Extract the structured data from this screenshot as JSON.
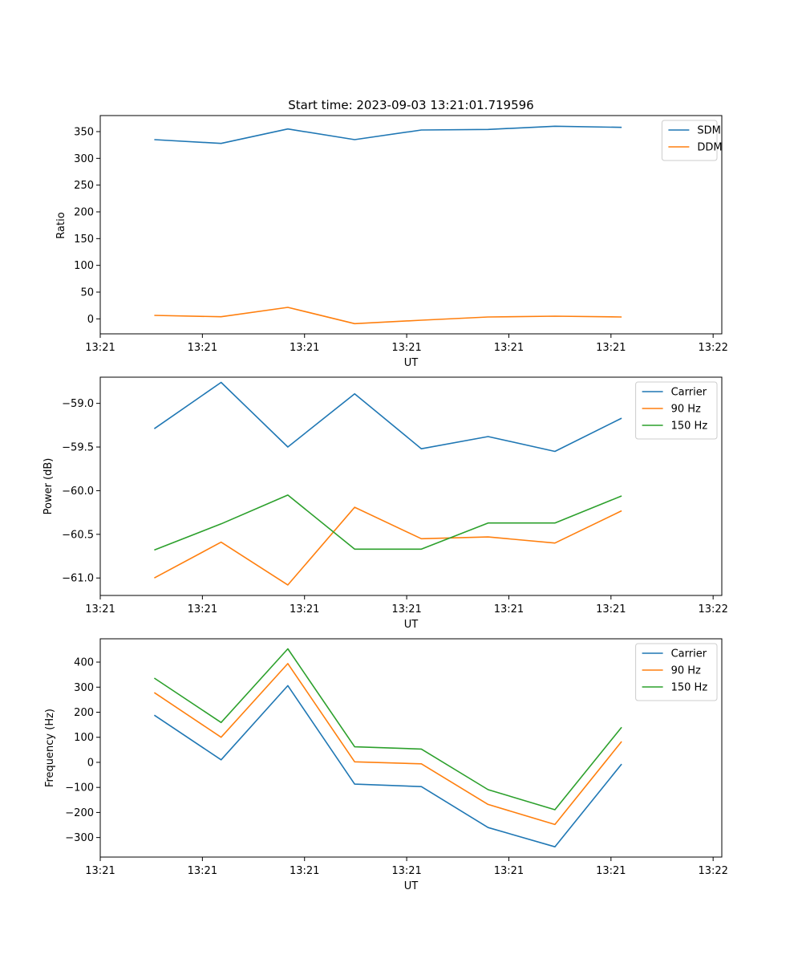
{
  "chart_data": [
    {
      "type": "line",
      "title": "Start time: 2023-09-03 13:21:01.719596",
      "xlabel": "UT",
      "ylabel": "Ratio",
      "x": [
        1,
        2,
        3,
        4,
        5,
        6,
        7,
        8
      ],
      "xlim": [
        0.19,
        9.5
      ],
      "x_ticks": [
        0.19,
        1.72,
        3.25,
        4.78,
        6.31,
        7.84,
        9.37
      ],
      "x_tick_labels": [
        "13:21",
        "13:21",
        "13:21",
        "13:21",
        "13:21",
        "13:21",
        "13:22"
      ],
      "ylim": [
        -28,
        380
      ],
      "y_ticks": [
        0,
        50,
        100,
        150,
        200,
        250,
        300,
        350
      ],
      "y_tick_labels": [
        "0",
        "50",
        "100",
        "150",
        "200",
        "250",
        "300",
        "350"
      ],
      "legend": "top-right",
      "series": [
        {
          "name": "SDM",
          "color": "#1f77b4",
          "values": [
            335,
            328,
            355,
            335,
            353,
            354,
            360,
            358
          ]
        },
        {
          "name": "DDM",
          "color": "#ff7f0e",
          "values": [
            6.5,
            4,
            21.5,
            -9,
            -2.5,
            3.5,
            5,
            3.5
          ]
        }
      ]
    },
    {
      "type": "line",
      "title": "",
      "xlabel": "UT",
      "ylabel": "Power (dB)",
      "x": [
        1,
        2,
        3,
        4,
        5,
        6,
        7,
        8
      ],
      "xlim": [
        0.19,
        9.5
      ],
      "x_ticks": [
        0.19,
        1.72,
        3.25,
        4.78,
        6.31,
        7.84,
        9.37
      ],
      "x_tick_labels": [
        "13:21",
        "13:21",
        "13:21",
        "13:21",
        "13:21",
        "13:21",
        "13:22"
      ],
      "ylim": [
        -61.2,
        -58.7
      ],
      "y_ticks": [
        -61.0,
        -60.5,
        -60.0,
        -59.5,
        -59.0
      ],
      "y_tick_labels": [
        "−61.0",
        "−60.5",
        "−60.0",
        "−59.5",
        "−59.0"
      ],
      "legend": "top-right",
      "series": [
        {
          "name": "Carrier",
          "color": "#1f77b4",
          "values": [
            -59.29,
            -58.76,
            -59.5,
            -58.89,
            -59.52,
            -59.38,
            -59.55,
            -59.17
          ]
        },
        {
          "name": "90 Hz",
          "color": "#ff7f0e",
          "values": [
            -61.0,
            -60.59,
            -61.08,
            -60.19,
            -60.55,
            -60.53,
            -60.6,
            -60.23
          ]
        },
        {
          "name": "150 Hz",
          "color": "#2ca02c",
          "values": [
            -60.68,
            -60.38,
            -60.05,
            -60.67,
            -60.67,
            -60.37,
            -60.37,
            -60.06
          ]
        }
      ]
    },
    {
      "type": "line",
      "title": "",
      "xlabel": "UT",
      "ylabel": "Frequency (Hz)",
      "x": [
        1,
        2,
        3,
        4,
        5,
        6,
        7,
        8
      ],
      "xlim": [
        0.19,
        9.5
      ],
      "x_ticks": [
        0.19,
        1.72,
        3.25,
        4.78,
        6.31,
        7.84,
        9.37
      ],
      "x_tick_labels": [
        "13:21",
        "13:21",
        "13:21",
        "13:21",
        "13:21",
        "13:21",
        "13:22"
      ],
      "ylim": [
        -378,
        493
      ],
      "y_ticks": [
        -300,
        -200,
        -100,
        0,
        100,
        200,
        300,
        400
      ],
      "y_tick_labels": [
        "−300",
        "−200",
        "−100",
        "0",
        "100",
        "200",
        "300",
        "400"
      ],
      "legend": "top-right",
      "series": [
        {
          "name": "Carrier",
          "color": "#1f77b4",
          "values": [
            188,
            10,
            306,
            -87,
            -97,
            -260,
            -337,
            -7
          ]
        },
        {
          "name": "90 Hz",
          "color": "#ff7f0e",
          "values": [
            278,
            100,
            394,
            2,
            -6,
            -168,
            -248,
            83
          ]
        },
        {
          "name": "150 Hz",
          "color": "#2ca02c",
          "values": [
            336,
            159,
            453,
            62,
            53,
            -109,
            -189,
            140
          ]
        }
      ]
    }
  ]
}
